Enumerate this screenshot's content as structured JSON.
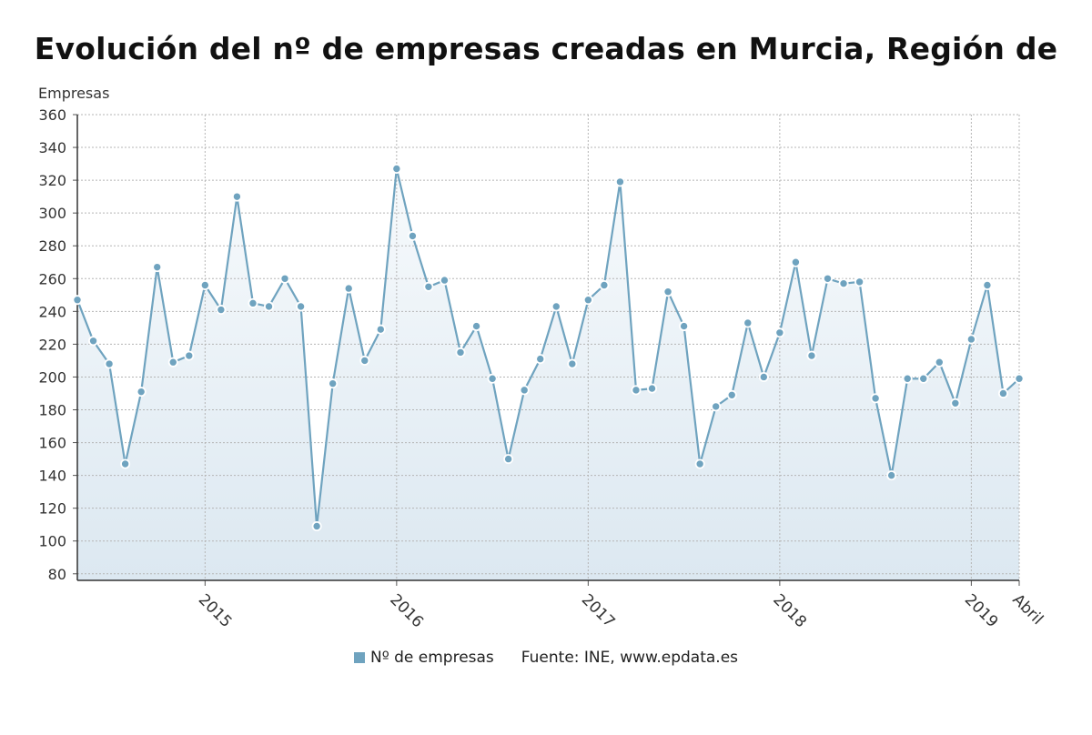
{
  "chart_data": {
    "type": "area",
    "title": "Evolución del nº de empresas creadas en Murcia, Región de",
    "ylabel": "Empresas",
    "ylim": [
      76,
      360
    ],
    "yticks": [
      80,
      100,
      120,
      140,
      160,
      180,
      200,
      220,
      240,
      260,
      280,
      300,
      320,
      340,
      360
    ],
    "x_start": "2014-05",
    "x_end": "2019-04",
    "xticks": [
      {
        "label": "2015",
        "date": "2015-01"
      },
      {
        "label": "2016",
        "date": "2016-01"
      },
      {
        "label": "2017",
        "date": "2017-01"
      },
      {
        "label": "2018",
        "date": "2018-01"
      },
      {
        "label": "2019",
        "date": "2019-01"
      },
      {
        "label": "Abril",
        "date": "2019-04"
      }
    ],
    "grid": true,
    "legend_position": "bottom",
    "series": [
      {
        "name": "Nº de empresas",
        "color": "#6fa3bf",
        "x": [
          "2014-05",
          "2014-06",
          "2014-07",
          "2014-08",
          "2014-09",
          "2014-10",
          "2014-11",
          "2014-12",
          "2015-01",
          "2015-02",
          "2015-03",
          "2015-04",
          "2015-05",
          "2015-06",
          "2015-07",
          "2015-08",
          "2015-09",
          "2015-10",
          "2015-11",
          "2015-12",
          "2016-01",
          "2016-02",
          "2016-03",
          "2016-04",
          "2016-05",
          "2016-06",
          "2016-07",
          "2016-08",
          "2016-09",
          "2016-10",
          "2016-11",
          "2016-12",
          "2017-01",
          "2017-02",
          "2017-03",
          "2017-04",
          "2017-05",
          "2017-06",
          "2017-07",
          "2017-08",
          "2017-09",
          "2017-10",
          "2017-11",
          "2017-12",
          "2018-01",
          "2018-02",
          "2018-03",
          "2018-04",
          "2018-05",
          "2018-06",
          "2018-07",
          "2018-08",
          "2018-09",
          "2018-10",
          "2018-11",
          "2018-12",
          "2019-01",
          "2019-02",
          "2019-03",
          "2019-04"
        ],
        "values": [
          247,
          222,
          208,
          147,
          191,
          267,
          209,
          213,
          256,
          241,
          310,
          245,
          243,
          260,
          243,
          109,
          196,
          254,
          210,
          229,
          327,
          286,
          255,
          259,
          215,
          231,
          199,
          150,
          192,
          211,
          243,
          208,
          247,
          256,
          319,
          192,
          193,
          252,
          231,
          147,
          182,
          189,
          233,
          200,
          227,
          270,
          213,
          260,
          257,
          258,
          187,
          140,
          199,
          199,
          209,
          184,
          223,
          256,
          190,
          199
        ]
      }
    ],
    "source": "Fuente: INE, www.epdata.es"
  }
}
